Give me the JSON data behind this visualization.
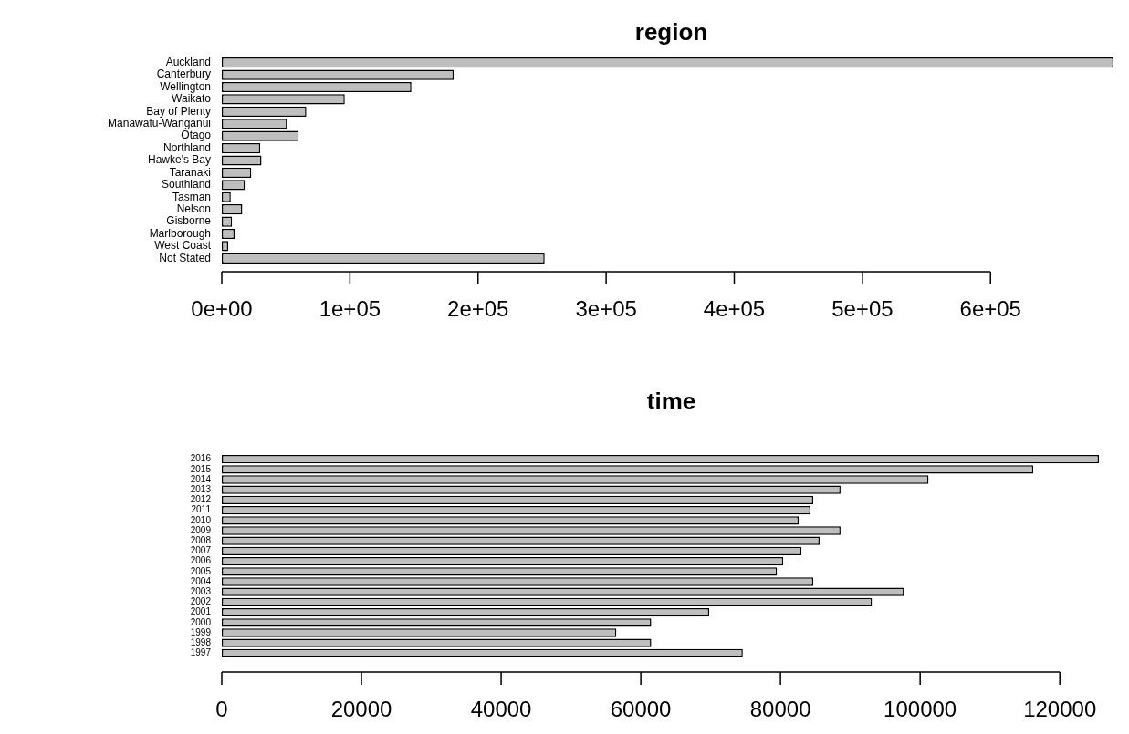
{
  "chart_data": [
    {
      "type": "bar",
      "orientation": "horizontal",
      "title": "region",
      "color": "#bebebe",
      "categories": [
        "Auckland",
        "Canterbury",
        "Wellington",
        "Waikato",
        "Bay of Plenty",
        "Manawatu-Wanganui",
        "Otago",
        "Northland",
        "Hawke's Bay",
        "Taranaki",
        "Southland",
        "Tasman",
        "Nelson",
        "Gisborne",
        "Marlborough",
        "West Coast",
        "Not Stated"
      ],
      "values": [
        696000,
        181000,
        148000,
        96000,
        66000,
        51000,
        60000,
        30000,
        31000,
        23000,
        18000,
        7000,
        16000,
        8000,
        10000,
        5000,
        252000
      ],
      "xlim": [
        0,
        696000
      ],
      "xticks": [
        {
          "value": 0,
          "label": "0e+00"
        },
        {
          "value": 100000,
          "label": "1e+05"
        },
        {
          "value": 200000,
          "label": "2e+05"
        },
        {
          "value": 300000,
          "label": "3e+05"
        },
        {
          "value": 400000,
          "label": "4e+05"
        },
        {
          "value": 500000,
          "label": "5e+05"
        },
        {
          "value": 600000,
          "label": "6e+05"
        }
      ]
    },
    {
      "type": "bar",
      "orientation": "horizontal",
      "title": "time",
      "color": "#bebebe",
      "categories": [
        "2016",
        "2015",
        "2014",
        "2013",
        "2012",
        "2011",
        "2010",
        "2009",
        "2008",
        "2007",
        "2006",
        "2005",
        "2004",
        "2003",
        "2002",
        "2001",
        "2000",
        "1999",
        "1998",
        "1997"
      ],
      "values": [
        125600,
        116200,
        101200,
        88600,
        84700,
        84300,
        82600,
        88600,
        85600,
        83000,
        80400,
        79500,
        84700,
        97700,
        93100,
        69800,
        61500,
        56500,
        61500,
        74600
      ],
      "xlim": [
        0,
        125600
      ],
      "xticks": [
        0,
        20000,
        40000,
        60000,
        80000,
        100000,
        120000
      ]
    }
  ]
}
